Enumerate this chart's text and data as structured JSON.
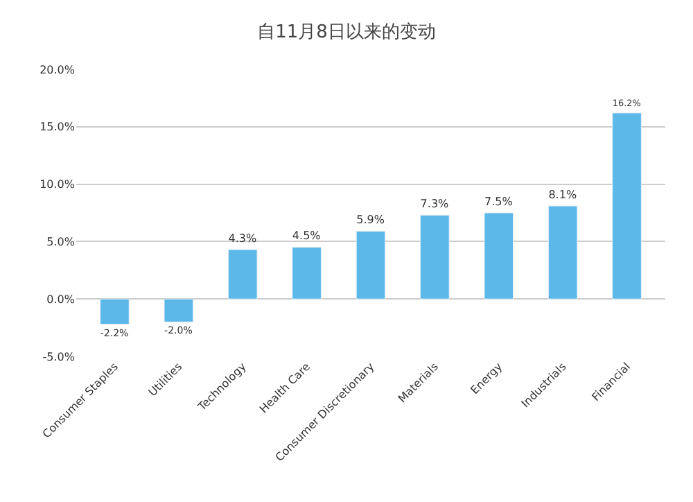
{
  "chart_data": {
    "type": "bar",
    "title": "自11月8日以来的变动",
    "categories": [
      "Consumer Staples",
      "Utilities",
      "Technology",
      "Health Care",
      "Consumer Discretionary",
      "Materials",
      "Energy",
      "Industrials",
      "Financial"
    ],
    "values": [
      -2.2,
      -2.0,
      4.3,
      4.5,
      5.9,
      7.3,
      7.5,
      8.1,
      16.2
    ],
    "value_labels": [
      "-2.2%",
      "-2.0%",
      "4.3%",
      "4.5%",
      "5.9%",
      "7.3%",
      "7.5%",
      "8.1%",
      "16.2%"
    ],
    "color": "#5bb8e8",
    "ylim": [
      -5,
      20
    ],
    "yticks": [
      {
        "value": -5,
        "label": "-5.0%"
      },
      {
        "value": 0,
        "label": "0.0%"
      },
      {
        "value": 5,
        "label": "5.0%"
      },
      {
        "value": 10,
        "label": "10.0%"
      },
      {
        "value": 15,
        "label": "15.0%"
      },
      {
        "value": 20,
        "label": "20.0%"
      }
    ],
    "grid": "y",
    "legend": false
  }
}
